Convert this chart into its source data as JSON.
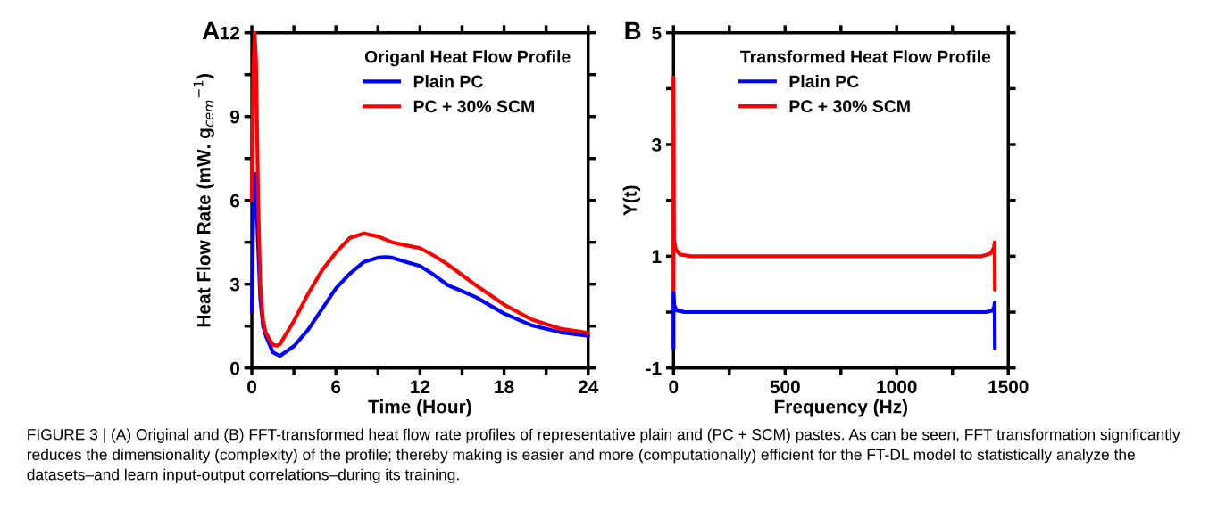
{
  "chart_data": [
    {
      "type": "line",
      "xlabel": "Time (Hour)",
      "ylabel": "Heat Flow Rate (mW. g$_{cem}$$^{−1}$)",
      "legend_title": "Origanl Heat Flow Profile",
      "legend": "top right",
      "grid": false,
      "line_style": "solid",
      "xlim": [
        0,
        24
      ],
      "xticks": [
        0,
        {
          "value": 3,
          "label": null
        },
        6,
        {
          "value": 9,
          "label": null
        },
        12,
        {
          "value": 15,
          "label": null
        },
        18,
        {
          "value": 21,
          "label": null
        },
        24
      ],
      "ylim": [
        0,
        12
      ],
      "yticks": [
        0,
        {
          "value": 1.5,
          "label": null
        },
        3,
        {
          "value": 4.5,
          "label": null
        },
        6,
        {
          "value": 7.5,
          "label": null
        },
        9,
        {
          "value": 10.5,
          "label": null
        },
        12
      ],
      "annotations": [
        "A"
      ],
      "series": [
        {
          "name": "Plain PC",
          "color": "#0000ff",
          "x": [
            0,
            0.1,
            0.23,
            0.4,
            0.6,
            0.8,
            1,
            1.5,
            2,
            3,
            4,
            5,
            6,
            7,
            8,
            9,
            9.5,
            10,
            11,
            12,
            13,
            14,
            15,
            16,
            18,
            20,
            22,
            24
          ],
          "values": [
            2.0,
            5.5,
            6.95,
            5.0,
            2.5,
            1.5,
            1.15,
            0.56,
            0.43,
            0.78,
            1.36,
            2.1,
            2.85,
            3.38,
            3.8,
            3.95,
            3.97,
            3.95,
            3.8,
            3.65,
            3.33,
            2.96,
            2.75,
            2.53,
            1.95,
            1.52,
            1.28,
            1.15
          ]
        },
        {
          "name": "PC + 30% SCM",
          "color": "#ff0000",
          "x": [
            0,
            0.1,
            0.2,
            0.3,
            0.45,
            0.6,
            0.8,
            1,
            1.5,
            1.8,
            2,
            3,
            4,
            5,
            6,
            7,
            8,
            9,
            10,
            11,
            12,
            13,
            14,
            16,
            18,
            20,
            22,
            24
          ],
          "values": [
            6.0,
            10.5,
            12.0,
            11.0,
            6.0,
            3.0,
            1.7,
            1.25,
            0.83,
            0.8,
            0.85,
            1.68,
            2.64,
            3.49,
            4.13,
            4.66,
            4.82,
            4.71,
            4.5,
            4.39,
            4.29,
            4.02,
            3.7,
            2.96,
            2.27,
            1.73,
            1.41,
            1.26
          ]
        }
      ]
    },
    {
      "type": "line",
      "xlabel": "Frequency (Hz)",
      "ylabel": "Y(t)",
      "legend_title": "Transformed Heat Flow Profile",
      "legend": "top right",
      "grid": false,
      "line_style": "solid",
      "xlim": [
        0,
        1500
      ],
      "xticks": [
        0,
        {
          "value": 250,
          "label": null
        },
        500,
        {
          "value": 750,
          "label": null
        },
        1000,
        {
          "value": 1250,
          "label": null
        },
        1500
      ],
      "ylim": [
        -1,
        5
      ],
      "yticks": [
        -1,
        {
          "value": 0,
          "label": null
        },
        1,
        {
          "value": 2,
          "label": null
        },
        3,
        {
          "value": 4,
          "label": null
        },
        5
      ],
      "annotations": [
        "B",
        "FIGURE 3 | (A) Original and (B) FFT-transformed heat flow rate profiles of representative plain and (PC + SCM) pastes. As can be seen, FFT transformation significantly reduces the dimensionality (complexity) of the profile; thereby making is easier and more (computationally) efficient for the FT-DL model to statistically analyze the datasets–and learn input-output correlations–during its training."
      ],
      "series": [
        {
          "name": "Plain PC",
          "color": "#0000ff",
          "x": [
            0,
            0,
            3,
            15,
            50,
            400,
            800,
            1200,
            1400,
            1430,
            1437,
            1439,
            1440
          ],
          "values": [
            -0.65,
            0.37,
            0.12,
            0.03,
            0.0,
            0.0,
            0.0,
            0.0,
            0.0,
            0.03,
            0.1,
            0.17,
            -0.65
          ]
        },
        {
          "name": "PC + 30% SCM",
          "color": "#ff0000",
          "x": [
            0,
            0,
            2,
            10,
            30,
            80,
            400,
            800,
            1200,
            1380,
            1420,
            1435,
            1439,
            1440
          ],
          "values": [
            0.4,
            4.2,
            1.3,
            1.12,
            1.03,
            1.0,
            1.0,
            1.0,
            1.0,
            1.0,
            1.05,
            1.15,
            1.25,
            0.4
          ]
        }
      ]
    }
  ]
}
